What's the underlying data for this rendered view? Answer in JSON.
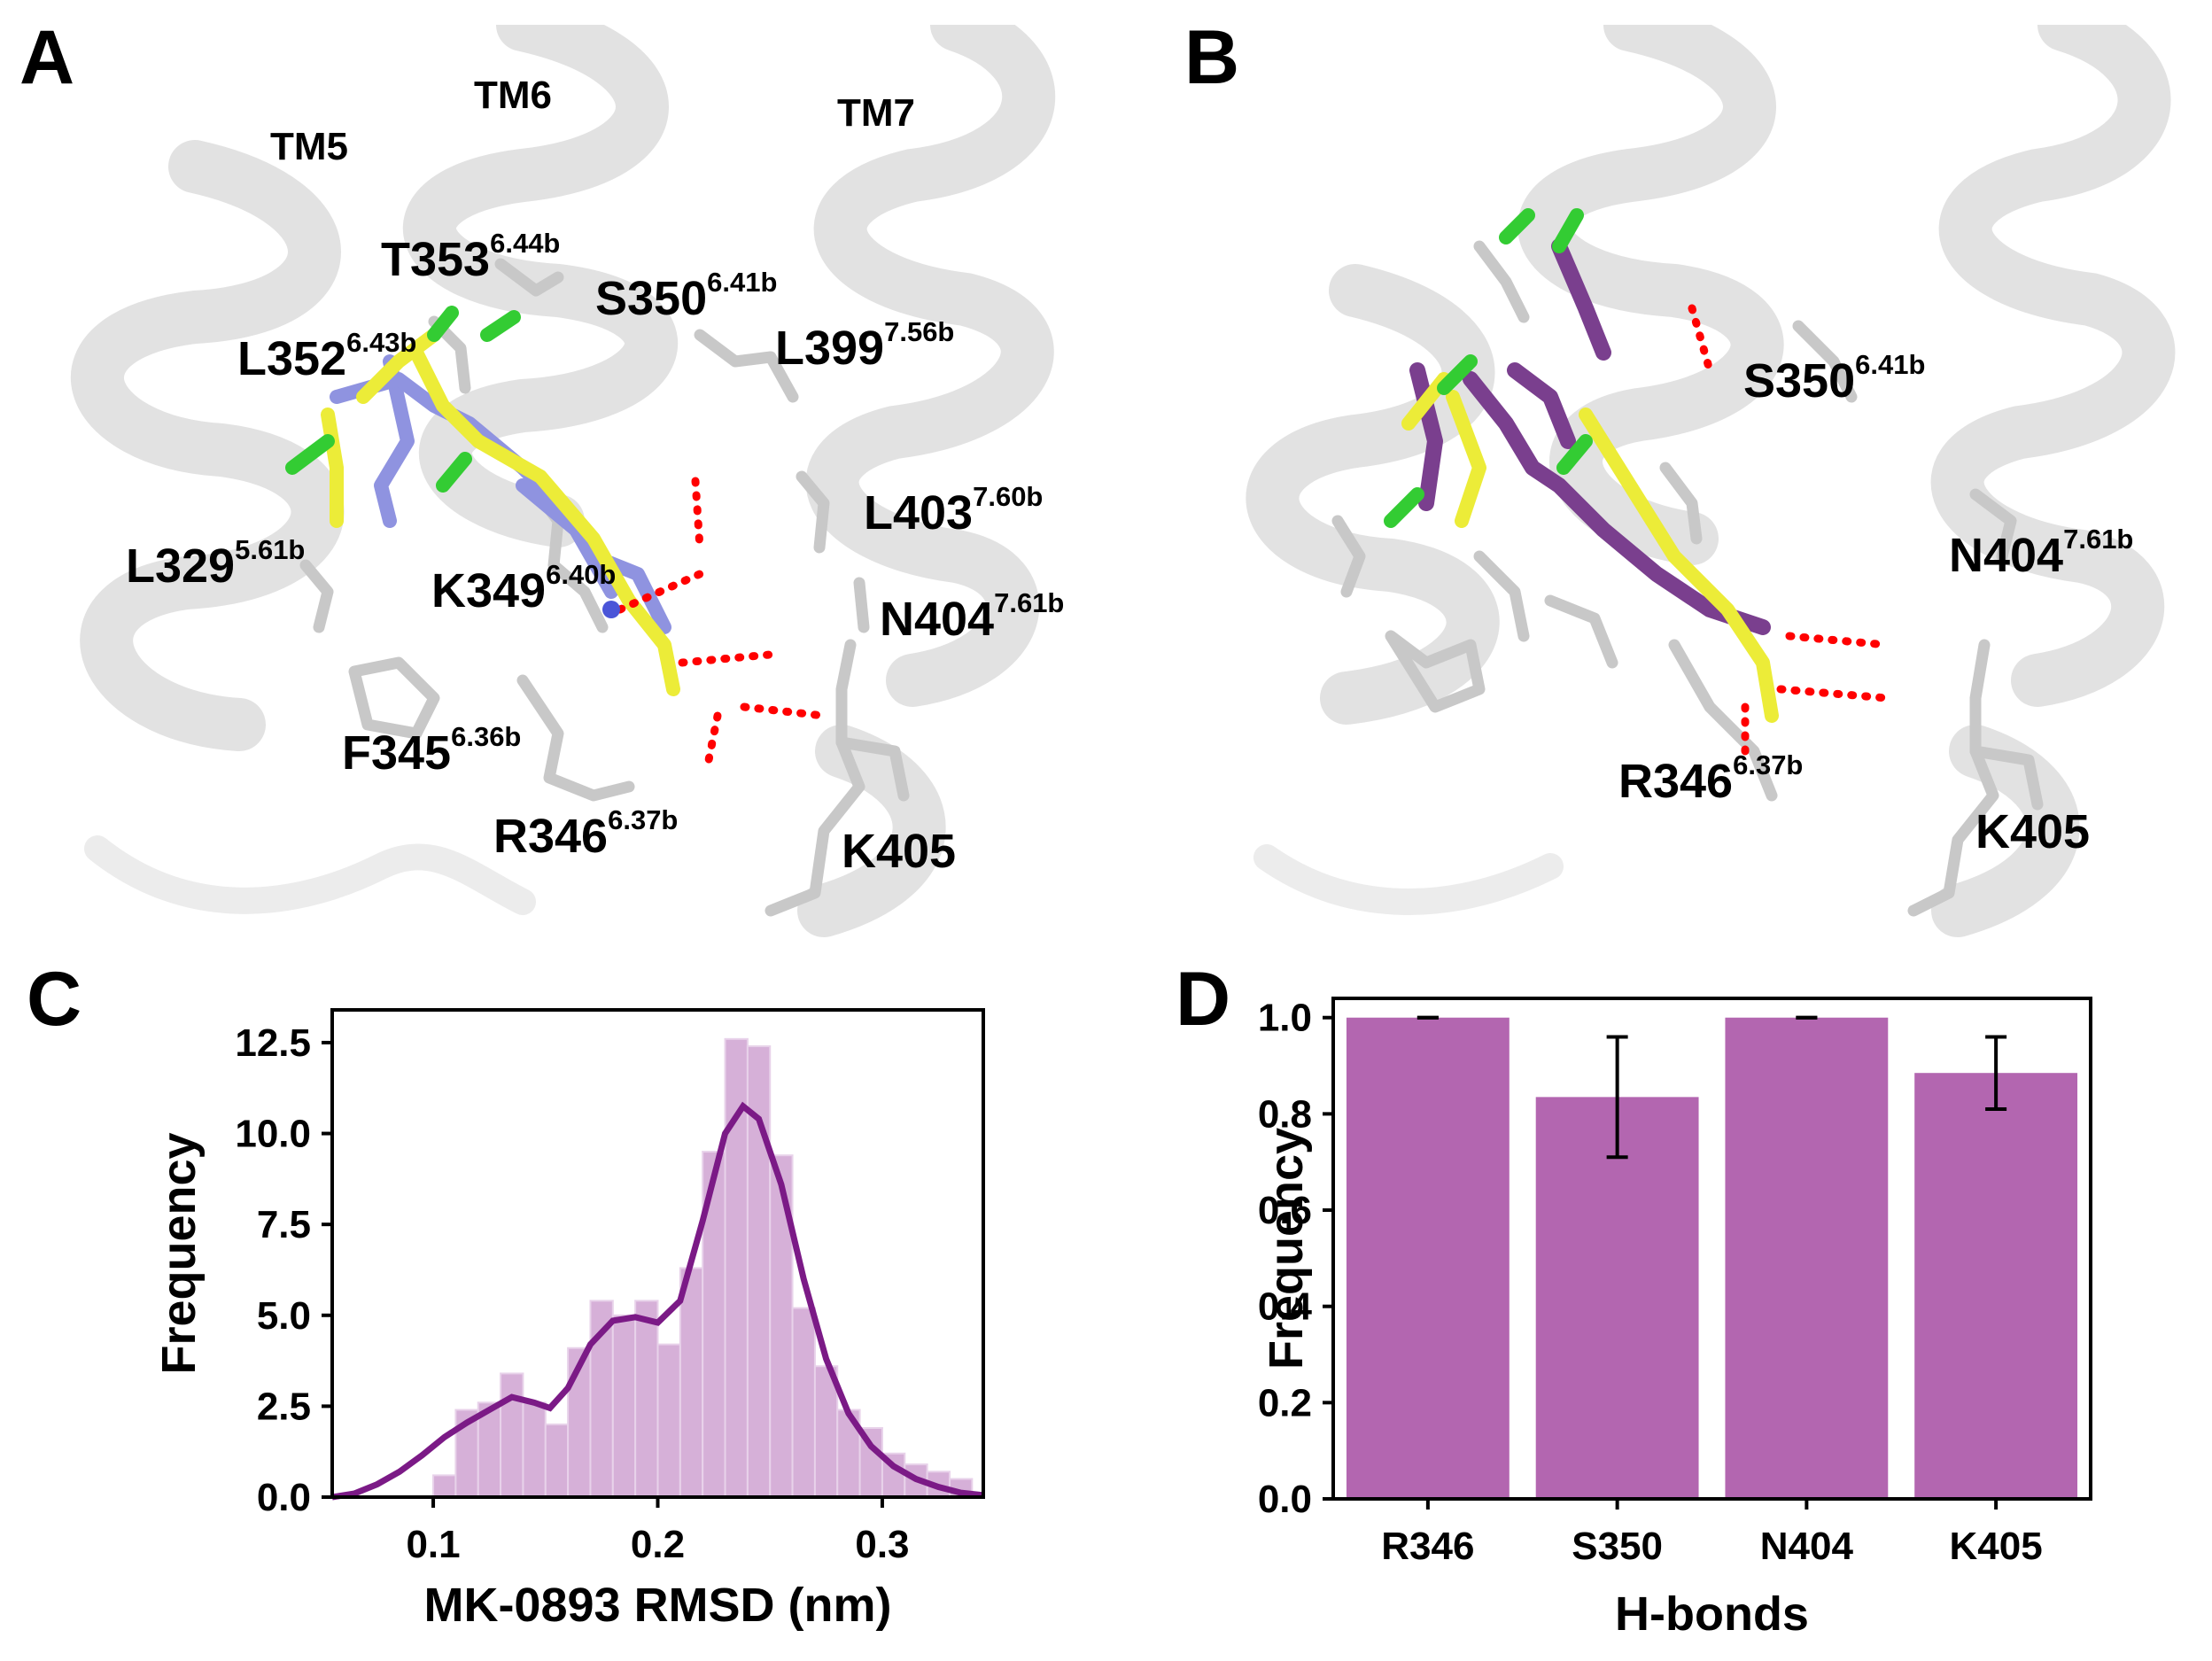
{
  "panels": {
    "A": {
      "letter": "A",
      "helices": [
        "TM5",
        "TM6",
        "TM7"
      ],
      "residues": [
        {
          "name": "T353",
          "sup": "6.44b"
        },
        {
          "name": "S350",
          "sup": "6.41b"
        },
        {
          "name": "L352",
          "sup": "6.43b"
        },
        {
          "name": "L399",
          "sup": "7.56b"
        },
        {
          "name": "L403",
          "sup": "7.60b"
        },
        {
          "name": "L329",
          "sup": "5.61b"
        },
        {
          "name": "K349",
          "sup": "6.40b"
        },
        {
          "name": "N404",
          "sup": "7.61b"
        },
        {
          "name": "F345",
          "sup": "6.36b"
        },
        {
          "name": "R346",
          "sup": "6.37b"
        },
        {
          "name": "K405",
          "sup": ""
        }
      ]
    },
    "B": {
      "letter": "B",
      "residues": [
        {
          "name": "S350",
          "sup": "6.41b"
        },
        {
          "name": "N404",
          "sup": "7.61b"
        },
        {
          "name": "R346",
          "sup": "6.37b"
        },
        {
          "name": "K405",
          "sup": ""
        }
      ]
    },
    "C": {
      "letter": "C"
    },
    "D": {
      "letter": "D"
    }
  },
  "colors": {
    "histogram_fill": "#d6b0d8",
    "kde_line": "#7b1a86",
    "bar_fill": "#b366b0",
    "ligand_yellow": "#ecec38",
    "ligand_blue": "#8f93e0",
    "ligand_purple": "#7a3f8e",
    "hbond": "#ff0000",
    "cartoon": "#e4e4e4"
  },
  "chart_data": [
    {
      "type": "histogram",
      "panel": "C",
      "xlabel": "MK-0893 RMSD (nm)",
      "ylabel": "Frequency",
      "xlim": [
        0.055,
        0.345
      ],
      "ylim": [
        0,
        13.4
      ],
      "xticks": [
        "0.1",
        "0.2",
        "0.3"
      ],
      "xtick_values": [
        0.1,
        0.2,
        0.3
      ],
      "yticks": [
        "0.0",
        "2.5",
        "5.0",
        "7.5",
        "10.0",
        "12.5"
      ],
      "ytick_values": [
        0,
        2.5,
        5,
        7.5,
        10,
        12.5
      ],
      "bin_width": 0.01,
      "bins": [
        {
          "x0": 0.1,
          "h": 0.6
        },
        {
          "x0": 0.11,
          "h": 2.4
        },
        {
          "x0": 0.12,
          "h": 2.6
        },
        {
          "x0": 0.13,
          "h": 3.4
        },
        {
          "x0": 0.14,
          "h": 2.6
        },
        {
          "x0": 0.15,
          "h": 2.0
        },
        {
          "x0": 0.16,
          "h": 4.1
        },
        {
          "x0": 0.17,
          "h": 5.4
        },
        {
          "x0": 0.18,
          "h": 5.0
        },
        {
          "x0": 0.19,
          "h": 5.4
        },
        {
          "x0": 0.2,
          "h": 4.2
        },
        {
          "x0": 0.21,
          "h": 6.3
        },
        {
          "x0": 0.22,
          "h": 9.5
        },
        {
          "x0": 0.23,
          "h": 12.6
        },
        {
          "x0": 0.24,
          "h": 12.4
        },
        {
          "x0": 0.25,
          "h": 9.4
        },
        {
          "x0": 0.26,
          "h": 5.2
        },
        {
          "x0": 0.27,
          "h": 3.6
        },
        {
          "x0": 0.28,
          "h": 2.4
        },
        {
          "x0": 0.29,
          "h": 1.9
        },
        {
          "x0": 0.3,
          "h": 1.2
        },
        {
          "x0": 0.31,
          "h": 0.9
        },
        {
          "x0": 0.32,
          "h": 0.7
        },
        {
          "x0": 0.33,
          "h": 0.5
        }
      ],
      "kde": [
        [
          0.055,
          0.0
        ],
        [
          0.065,
          0.1
        ],
        [
          0.075,
          0.35
        ],
        [
          0.085,
          0.7
        ],
        [
          0.095,
          1.15
        ],
        [
          0.105,
          1.65
        ],
        [
          0.115,
          2.05
        ],
        [
          0.125,
          2.4
        ],
        [
          0.135,
          2.75
        ],
        [
          0.145,
          2.6
        ],
        [
          0.152,
          2.45
        ],
        [
          0.16,
          3.0
        ],
        [
          0.17,
          4.2
        ],
        [
          0.18,
          4.85
        ],
        [
          0.19,
          4.95
        ],
        [
          0.2,
          4.8
        ],
        [
          0.21,
          5.4
        ],
        [
          0.22,
          7.6
        ],
        [
          0.23,
          10.0
        ],
        [
          0.238,
          10.75
        ],
        [
          0.245,
          10.4
        ],
        [
          0.255,
          8.6
        ],
        [
          0.265,
          6.0
        ],
        [
          0.275,
          3.8
        ],
        [
          0.285,
          2.3
        ],
        [
          0.295,
          1.4
        ],
        [
          0.305,
          0.85
        ],
        [
          0.315,
          0.5
        ],
        [
          0.325,
          0.28
        ],
        [
          0.335,
          0.12
        ],
        [
          0.345,
          0.05
        ]
      ]
    },
    {
      "type": "bar",
      "panel": "D",
      "xlabel": "H-bonds",
      "ylabel": "Frequency",
      "categories": [
        "R346",
        "S350",
        "N404",
        "K405"
      ],
      "values": [
        1.0,
        0.835,
        1.0,
        0.885
      ],
      "errors": [
        0.0,
        0.125,
        0.0,
        0.075
      ],
      "ylim": [
        0,
        1.04
      ],
      "yticks": [
        "0.0",
        "0.2",
        "0.4",
        "0.6",
        "0.8",
        "1.0"
      ],
      "ytick_values": [
        0,
        0.2,
        0.4,
        0.6,
        0.8,
        1.0
      ]
    }
  ]
}
